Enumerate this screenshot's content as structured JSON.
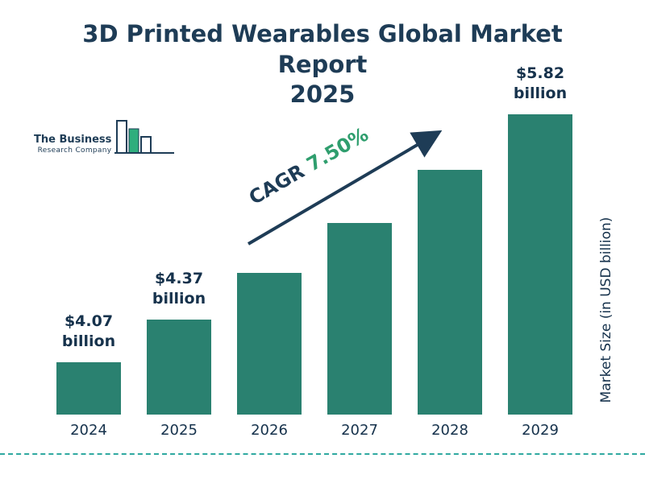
{
  "title": {
    "line1": "3D Printed Wearables Global Market Report",
    "line2": "2025"
  },
  "logo": {
    "name_line1": "The Business",
    "name_line2": "Research Company"
  },
  "cagr": {
    "label": "CAGR",
    "value": "7.50%"
  },
  "y_axis_label": "Market Size (in USD billion)",
  "chart_data": {
    "type": "bar",
    "title": "3D Printed Wearables Global Market Report 2025",
    "categories": [
      "2024",
      "2025",
      "2026",
      "2027",
      "2028",
      "2029"
    ],
    "values": [
      4.07,
      4.37,
      4.7,
      5.05,
      5.43,
      5.82
    ],
    "value_labels": [
      {
        "amount": "$4.07",
        "unit": "billion"
      },
      {
        "amount": "$4.37",
        "unit": "billion"
      },
      null,
      null,
      null,
      {
        "amount": "$5.82",
        "unit": "billion"
      }
    ],
    "xlabel": "",
    "ylabel": "Market Size (in USD billion)",
    "cagr": "7.50%",
    "ylim": [
      3.7,
      6.0
    ],
    "grid": false,
    "legend": false
  },
  "colors": {
    "bar": "#2a8170",
    "navy": "#1e3c56",
    "green": "#2f9e6e",
    "dashed_line": "#2fa9a0"
  }
}
